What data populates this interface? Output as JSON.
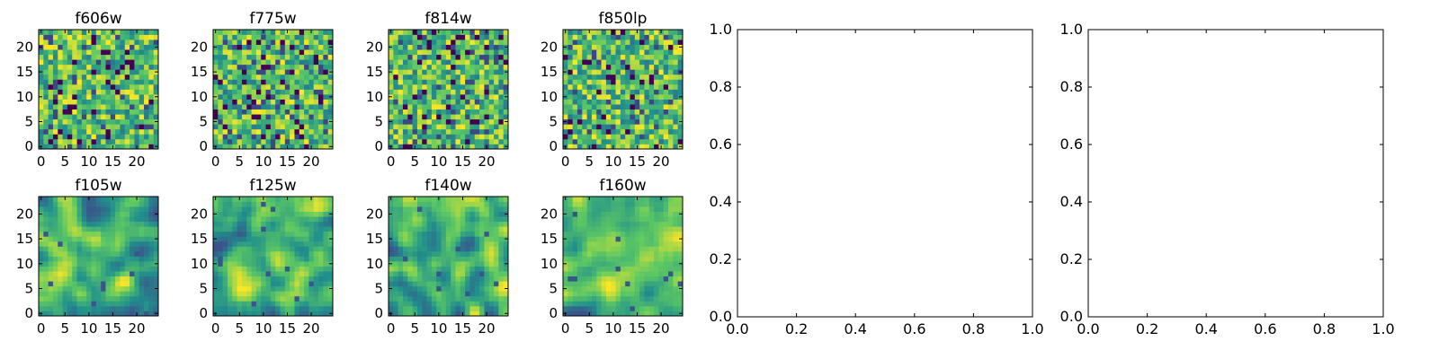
{
  "figure": {
    "colormap": [
      "#440154",
      "#3b528b",
      "#21918c",
      "#5ec962",
      "#fde725"
    ],
    "axis_color": "#000000",
    "background": "#ffffff"
  },
  "chart_data": [
    {
      "type": "heatmap",
      "title": "f606w",
      "rows": 24,
      "cols": 25,
      "xticks": [
        "0",
        "5",
        "10",
        "15",
        "20"
      ],
      "yticks": [
        "0",
        "5",
        "10",
        "15",
        "20"
      ],
      "xlim": [
        -0.5,
        24.5
      ],
      "ylim": [
        -0.5,
        23.5
      ],
      "smooth": false,
      "seed": 11
    },
    {
      "type": "heatmap",
      "title": "f775w",
      "rows": 24,
      "cols": 25,
      "xticks": [
        "0",
        "5",
        "10",
        "15",
        "20"
      ],
      "yticks": [
        "0",
        "5",
        "10",
        "15",
        "20"
      ],
      "xlim": [
        -0.5,
        24.5
      ],
      "ylim": [
        -0.5,
        23.5
      ],
      "smooth": false,
      "seed": 23
    },
    {
      "type": "heatmap",
      "title": "f814w",
      "rows": 24,
      "cols": 25,
      "xticks": [
        "0",
        "5",
        "10",
        "15",
        "20"
      ],
      "yticks": [
        "0",
        "5",
        "10",
        "15",
        "20"
      ],
      "xlim": [
        -0.5,
        24.5
      ],
      "ylim": [
        -0.5,
        23.5
      ],
      "smooth": false,
      "seed": 37
    },
    {
      "type": "heatmap",
      "title": "f850lp",
      "rows": 24,
      "cols": 25,
      "xticks": [
        "0",
        "5",
        "10",
        "15",
        "20"
      ],
      "yticks": [
        "0",
        "5",
        "10",
        "15",
        "20"
      ],
      "xlim": [
        -0.5,
        24.5
      ],
      "ylim": [
        -0.5,
        23.5
      ],
      "smooth": false,
      "seed": 41
    },
    {
      "type": "heatmap",
      "title": "f105w",
      "rows": 24,
      "cols": 25,
      "xticks": [
        "0",
        "5",
        "10",
        "15",
        "20"
      ],
      "yticks": [
        "0",
        "5",
        "10",
        "15",
        "20"
      ],
      "xlim": [
        -0.5,
        24.5
      ],
      "ylim": [
        -0.5,
        23.5
      ],
      "smooth": true,
      "seed": 53
    },
    {
      "type": "heatmap",
      "title": "f125w",
      "rows": 24,
      "cols": 25,
      "xticks": [
        "0",
        "5",
        "10",
        "15",
        "20"
      ],
      "yticks": [
        "0",
        "5",
        "10",
        "15",
        "20"
      ],
      "xlim": [
        -0.5,
        24.5
      ],
      "ylim": [
        -0.5,
        23.5
      ],
      "smooth": true,
      "seed": 67
    },
    {
      "type": "heatmap",
      "title": "f140w",
      "rows": 24,
      "cols": 25,
      "xticks": [
        "0",
        "5",
        "10",
        "15",
        "20"
      ],
      "yticks": [
        "0",
        "5",
        "10",
        "15",
        "20"
      ],
      "xlim": [
        -0.5,
        24.5
      ],
      "ylim": [
        -0.5,
        23.5
      ],
      "smooth": true,
      "seed": 79
    },
    {
      "type": "heatmap",
      "title": "f160w",
      "rows": 24,
      "cols": 25,
      "xticks": [
        "0",
        "5",
        "10",
        "15",
        "20"
      ],
      "yticks": [
        "0",
        "5",
        "10",
        "15",
        "20"
      ],
      "xlim": [
        -0.5,
        24.5
      ],
      "ylim": [
        -0.5,
        23.5
      ],
      "smooth": true,
      "seed": 97
    },
    {
      "type": "line",
      "title": "",
      "series": [],
      "xlim": [
        0.0,
        1.0
      ],
      "ylim": [
        0.0,
        1.0
      ],
      "xticks": [
        "0.0",
        "0.2",
        "0.4",
        "0.6",
        "0.8",
        "1.0"
      ],
      "yticks": [
        "0.0",
        "0.2",
        "0.4",
        "0.6",
        "0.8",
        "1.0"
      ]
    },
    {
      "type": "line",
      "title": "",
      "series": [],
      "xlim": [
        0.0,
        1.0
      ],
      "ylim": [
        0.0,
        1.0
      ],
      "xticks": [
        "0.0",
        "0.2",
        "0.4",
        "0.6",
        "0.8",
        "1.0"
      ],
      "yticks": [
        "0.0",
        "0.2",
        "0.4",
        "0.6",
        "0.8",
        "1.0"
      ]
    }
  ]
}
